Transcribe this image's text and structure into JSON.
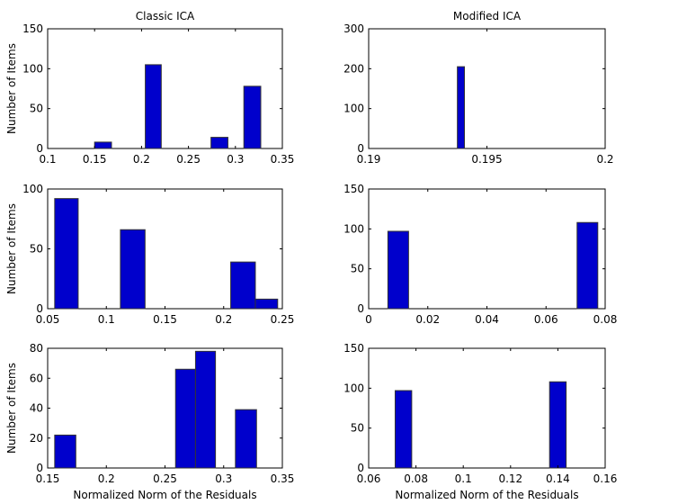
{
  "chart_data": [
    {
      "type": "bar",
      "panel": "top-left",
      "title": "Classic ICA",
      "xlabel": "",
      "ylabel": "Number of Items",
      "xlim": [
        0.1,
        0.35
      ],
      "ylim": [
        0,
        150
      ],
      "xticks": [
        "0.1",
        "0.15",
        "0.2",
        "0.25",
        "0.3",
        "0.35"
      ],
      "yticks": [
        "0",
        "50",
        "100",
        "150"
      ],
      "bins": [
        {
          "x0": 0.15,
          "x1": 0.168,
          "value": 8
        },
        {
          "x0": 0.204,
          "x1": 0.221,
          "value": 105
        },
        {
          "x0": 0.274,
          "x1": 0.292,
          "value": 14
        },
        {
          "x0": 0.309,
          "x1": 0.327,
          "value": 78
        }
      ]
    },
    {
      "type": "bar",
      "panel": "top-right",
      "title": "Modified ICA",
      "xlabel": "",
      "ylabel": "",
      "xlim": [
        0.19,
        0.2
      ],
      "ylim": [
        0,
        300
      ],
      "xticks": [
        "0.19",
        "0.195",
        "0.2"
      ],
      "yticks": [
        "0",
        "100",
        "200",
        "300"
      ],
      "bins": [
        {
          "x0": 0.19375,
          "x1": 0.19405,
          "value": 205
        }
      ]
    },
    {
      "type": "bar",
      "panel": "middle-left",
      "title": "",
      "xlabel": "",
      "ylabel": "Number of Items",
      "xlim": [
        0.05,
        0.25
      ],
      "ylim": [
        0,
        100
      ],
      "xticks": [
        "0.05",
        "0.1",
        "0.15",
        "0.2",
        "0.25"
      ],
      "yticks": [
        "0",
        "50",
        "100"
      ],
      "bins": [
        {
          "x0": 0.056,
          "x1": 0.076,
          "value": 92
        },
        {
          "x0": 0.112,
          "x1": 0.133,
          "value": 66
        },
        {
          "x0": 0.206,
          "x1": 0.227,
          "value": 39
        },
        {
          "x0": 0.227,
          "x1": 0.246,
          "value": 8
        }
      ]
    },
    {
      "type": "bar",
      "panel": "middle-right",
      "title": "",
      "xlabel": "",
      "ylabel": "",
      "xlim": [
        0,
        0.08
      ],
      "ylim": [
        0,
        150
      ],
      "xticks": [
        "0",
        "0.02",
        "0.04",
        "0.06",
        "0.08"
      ],
      "yticks": [
        "0",
        "50",
        "100",
        "150"
      ],
      "bins": [
        {
          "x0": 0.0065,
          "x1": 0.0135,
          "value": 97
        },
        {
          "x0": 0.0705,
          "x1": 0.0775,
          "value": 108
        }
      ]
    },
    {
      "type": "bar",
      "panel": "bottom-left",
      "title": "",
      "xlabel": "Normalized Norm of the Residuals",
      "ylabel": "Number of Items",
      "xlim": [
        0.15,
        0.35
      ],
      "ylim": [
        0,
        80
      ],
      "xticks": [
        "0.15",
        "0.2",
        "0.25",
        "0.3",
        "0.35"
      ],
      "yticks": [
        "0",
        "20",
        "40",
        "60",
        "80"
      ],
      "bins": [
        {
          "x0": 0.156,
          "x1": 0.174,
          "value": 22
        },
        {
          "x0": 0.259,
          "x1": 0.276,
          "value": 66
        },
        {
          "x0": 0.276,
          "x1": 0.293,
          "value": 78
        },
        {
          "x0": 0.31,
          "x1": 0.328,
          "value": 39
        }
      ]
    },
    {
      "type": "bar",
      "panel": "bottom-right",
      "title": "",
      "xlabel": "Normalized Norm of the Residuals",
      "ylabel": "",
      "xlim": [
        0.06,
        0.16
      ],
      "ylim": [
        0,
        150
      ],
      "xticks": [
        "0.06",
        "0.08",
        "0.1",
        "0.12",
        "0.14",
        "0.16"
      ],
      "yticks": [
        "0",
        "50",
        "100",
        "150"
      ],
      "bins": [
        {
          "x0": 0.0712,
          "x1": 0.0782,
          "value": 97
        },
        {
          "x0": 0.1365,
          "x1": 0.1435,
          "value": 108
        }
      ]
    }
  ]
}
